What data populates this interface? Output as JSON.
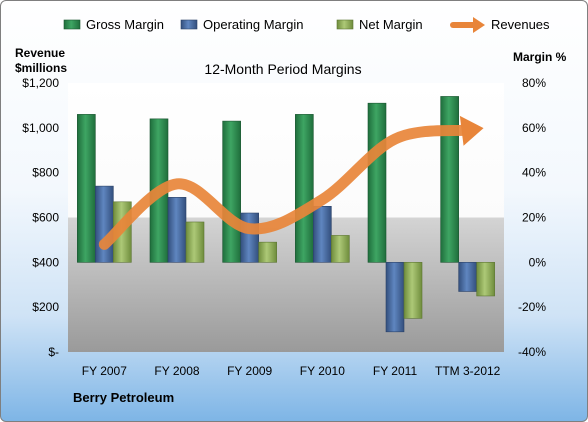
{
  "chart_data": {
    "type": "bar",
    "title": "12-Month Period Margins",
    "company": "Berry Petroleum",
    "categories": [
      "FY 2007",
      "FY 2008",
      "FY 2009",
      "FY 2010",
      "FY 2011",
      "TTM 3-2012"
    ],
    "left_axis": {
      "label_line1": "Revenue",
      "label_line2": "$millions",
      "ticks": [
        "$-",
        "$200",
        "$400",
        "$600",
        "$800",
        "$1,000",
        "$1,200"
      ],
      "ylim": [
        0,
        1200
      ]
    },
    "right_axis": {
      "label": "Margin %",
      "ticks": [
        "-40%",
        "-20%",
        "0%",
        "20%",
        "40%",
        "60%",
        "80%"
      ],
      "ylim": [
        -40,
        80
      ]
    },
    "series": [
      {
        "name": "Gross Margin",
        "axis": "right",
        "type": "bar",
        "values": [
          66,
          64,
          63,
          66,
          71,
          74
        ]
      },
      {
        "name": "Operating Margin",
        "axis": "right",
        "type": "bar",
        "values": [
          34,
          29,
          22,
          25,
          -31,
          -13
        ]
      },
      {
        "name": "Net Margin",
        "axis": "right",
        "type": "bar",
        "values": [
          27,
          18,
          9,
          12,
          -25,
          -15
        ]
      },
      {
        "name": "Revenues",
        "axis": "left",
        "type": "line",
        "values": [
          480,
          750,
          550,
          680,
          950,
          990
        ]
      }
    ],
    "colors": {
      "Gross Margin": "#2e8b50",
      "Operating Margin": "#4a6fa5",
      "Net Margin": "#93b35a",
      "Revenues": "#e8853a"
    },
    "legend_position": "top"
  }
}
